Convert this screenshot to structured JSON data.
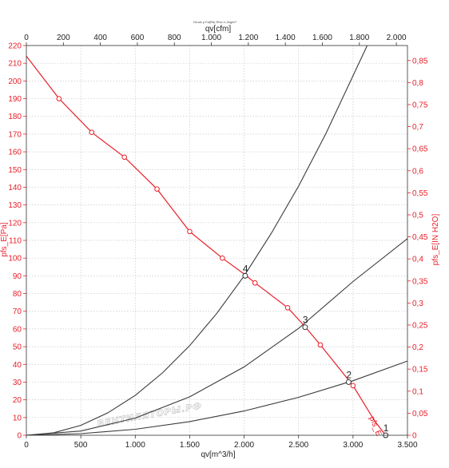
{
  "chart_data": {
    "type": "line",
    "caption": "Druck p Fa(Rb) Rho=1,2kg/m³",
    "watermark": "ВЕНТИЛЯТОРЫ.РФ",
    "x_bottom": {
      "label": "qv[m^3/h]",
      "lim": [
        0,
        3500
      ],
      "ticks": [
        0,
        500,
        1000,
        1500,
        2000,
        2500,
        3000,
        3500
      ],
      "tick_labels": [
        "0",
        "500",
        "1.000",
        "1.500",
        "2.000",
        "2.500",
        "3.000",
        "3.500"
      ]
    },
    "x_top": {
      "label": "qv[cfm]",
      "lim": [
        0,
        2060
      ],
      "ticks": [
        0,
        200,
        400,
        600,
        800,
        1000,
        1200,
        1400,
        1600,
        1800,
        2000
      ],
      "tick_labels": [
        "0",
        "200",
        "400",
        "600",
        "800",
        "1.000",
        "1.200",
        "1.400",
        "1.600",
        "1.800",
        "2.000"
      ]
    },
    "y_left": {
      "label": "pfs_E[Pa]",
      "lim": [
        0,
        220
      ],
      "ticks": [
        0,
        10,
        20,
        30,
        40,
        50,
        60,
        70,
        80,
        90,
        100,
        110,
        120,
        130,
        140,
        150,
        160,
        170,
        180,
        190,
        200,
        210,
        220
      ],
      "color": "#e8202a"
    },
    "y_right": {
      "label": "pfs_E[IN H2O]",
      "lim": [
        0,
        0.884
      ],
      "ticks": [
        0,
        0.05,
        0.1,
        0.15,
        0.2,
        0.25,
        0.3,
        0.35,
        0.4,
        0.45,
        0.5,
        0.55,
        0.6,
        0.65,
        0.7,
        0.75,
        0.8,
        0.85
      ],
      "tick_labels": [
        "0",
        "0,05",
        "0,1",
        "0,15",
        "0,2",
        "0,25",
        "0,3",
        "0,35",
        "0,4",
        "0,45",
        "0,5",
        "0,55",
        "0,6",
        "0,65",
        "0,7",
        "0,75",
        "0,8",
        "0,85"
      ],
      "color": "#e8202a"
    },
    "fan_curve": {
      "label": "pfs_E",
      "color": "#e8202a",
      "x": [
        0,
        300,
        600,
        900,
        1200,
        1500,
        1800,
        2000,
        2100,
        2400,
        2550,
        2700,
        3000,
        3200,
        3300
      ],
      "y": [
        214,
        190,
        171,
        157,
        139,
        115,
        100,
        91,
        86,
        72,
        62,
        51,
        28,
        8,
        0
      ],
      "marker_x": [
        300,
        600,
        900,
        1200,
        1500,
        1800,
        2100,
        2400,
        2700,
        3000
      ]
    },
    "system_curves": [
      {
        "name": "1",
        "x": [
          0,
          500,
          1000,
          1500,
          2000,
          2500,
          3000,
          3500
        ],
        "y": [
          0,
          0.9,
          3.4,
          7.7,
          13.7,
          21.4,
          30.8,
          41.9
        ]
      },
      {
        "name": "2",
        "x": [
          0,
          500,
          1000,
          1500,
          2000,
          2500,
          3000,
          3500
        ],
        "y": [
          0,
          2.4,
          9.7,
          21.7,
          38.6,
          60.3,
          86.8,
          111
        ]
      },
      {
        "name": "3",
        "x": [
          0,
          250,
          500,
          750,
          1000,
          1250,
          1500,
          1750,
          2000,
          2250,
          2500,
          2750,
          3130
        ],
        "y": [
          0,
          1.4,
          5.6,
          12.7,
          22.5,
          35.2,
          50.6,
          68.9,
          90,
          114,
          140.6,
          170.2,
          220
        ]
      }
    ],
    "operating_points": [
      {
        "label": "1",
        "x": 3300,
        "y": 0
      },
      {
        "label": "2",
        "x": 2960,
        "y": 30
      },
      {
        "label": "3",
        "x": 2560,
        "y": 61
      },
      {
        "label": "4",
        "x": 2010,
        "y": 90
      }
    ]
  }
}
